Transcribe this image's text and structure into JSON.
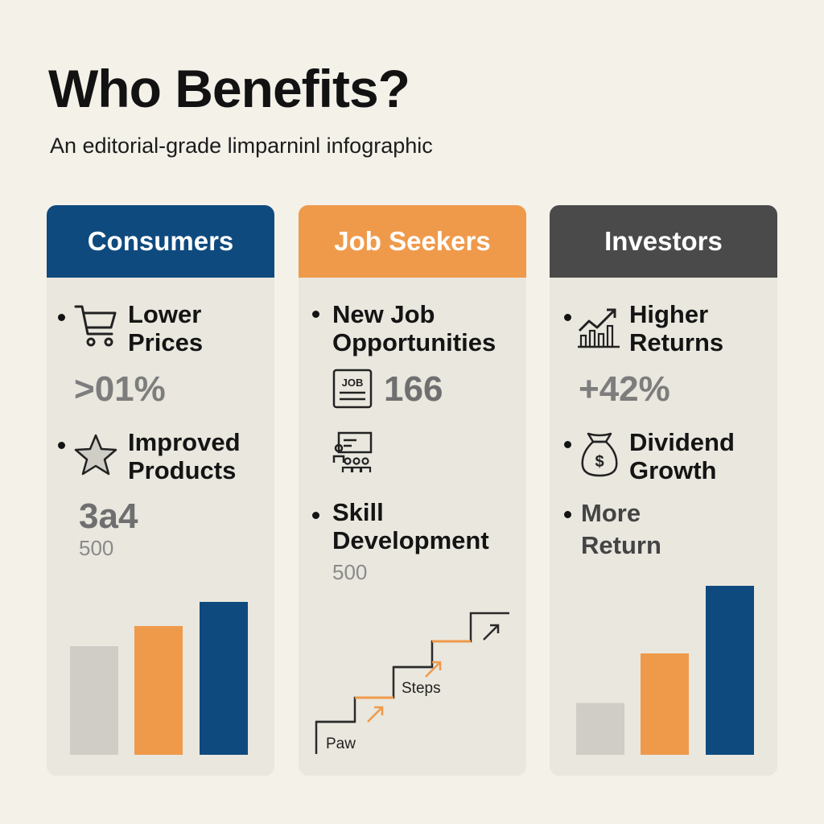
{
  "header": {
    "title": "Who Benefits?",
    "subtitle": "An editorial-grade limparninl infographic"
  },
  "colors": {
    "blue": "#0e4a7e",
    "orange": "#ef9a4b",
    "dark": "#4a4a4a",
    "gray_bar": "#cfcdc6"
  },
  "cards": {
    "consumers": {
      "title": "Consumers",
      "item1_line1": "Lower",
      "item1_line2": "Prices",
      "item1_value": ">01%",
      "item2_line1": "Improved",
      "item2_line2": "Products",
      "item2_value": "3a4",
      "item2_sub": "500"
    },
    "jobs": {
      "title": "Job Seekers",
      "item1_line1": "New Job",
      "item1_line2": "Opportunities",
      "job_icon_text": "JOB",
      "item1_value": "166",
      "item2_line1": "Skill",
      "item2_line2": "Development",
      "item2_sub": "500",
      "steps_label": "Steps",
      "paw_label": "Paw"
    },
    "investors": {
      "title": "Investors",
      "item1_line1": "Higher",
      "item1_line2": "Returns",
      "item1_value": "+42%",
      "item2_line1": "Dividend",
      "item2_line2": "Growth",
      "item3_line1": "More",
      "item3_line2": "Return"
    }
  },
  "chart_data": [
    {
      "type": "bar",
      "categories": [
        "",
        "",
        ""
      ],
      "values": [
        54,
        64,
        76
      ],
      "ylim": [
        0,
        100
      ],
      "colors": [
        "#cfcdc6",
        "#ef9a4b",
        "#0e4a7e"
      ]
    },
    {
      "type": "bar",
      "categories": [
        "",
        "",
        ""
      ],
      "values": [
        23,
        45,
        75
      ],
      "ylim": [
        0,
        100
      ],
      "colors": [
        "#cfcdc6",
        "#ef9a4b",
        "#0e4a7e"
      ]
    }
  ]
}
